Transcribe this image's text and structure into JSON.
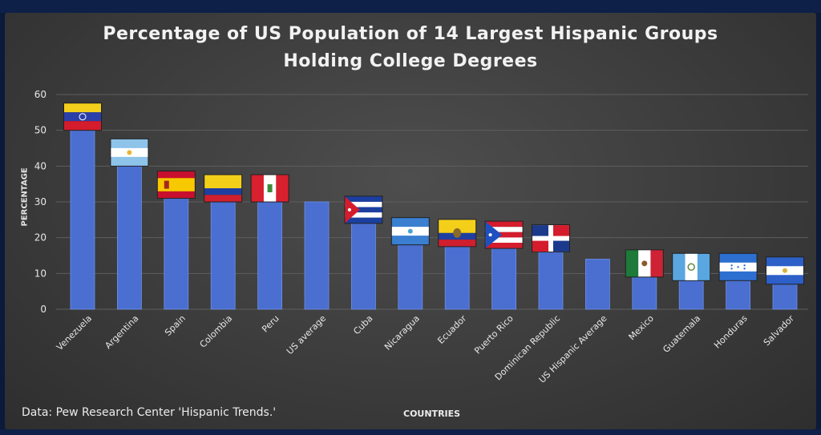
{
  "colors": {
    "bar": "#4a6fd0",
    "bar_edge": "#6f8fe6",
    "grid": "#5e5e5e",
    "text": "#e8e8e8"
  },
  "chart_data": {
    "type": "bar",
    "title_line1": "Percentage of US Population of 14 Largest Hispanic Groups",
    "title_line2": "Holding College Degrees",
    "xlabel": "COUNTRIES",
    "ylabel": "PERCENTAGE",
    "ylim": [
      0,
      60
    ],
    "yticks": [
      0,
      10,
      20,
      30,
      40,
      50,
      60
    ],
    "grid": true,
    "source": "Data: Pew Research Center 'Hispanic Trends.'",
    "categories": [
      "Venezuela",
      "Argentina",
      "Spain",
      "Colombia",
      "Peru",
      "US average",
      "Cuba",
      "Nicaragua",
      "Ecuador",
      "Puerto Rico",
      "Dominican Republic",
      "US Hispanic Average",
      "Mexico",
      "Guatemala",
      "Honduras",
      "Salvador"
    ],
    "values": [
      51,
      41,
      32,
      31,
      31,
      30,
      25,
      19,
      18.5,
      18,
      17,
      14,
      10,
      9,
      9,
      8
    ],
    "flags": [
      "venezuela-flag",
      "argentina-flag",
      "spain-flag",
      "colombia-flag",
      "peru-flag",
      "",
      "cuba-flag",
      "nicaragua-flag",
      "ecuador-flag",
      "puerto-rico-flag",
      "dominican-republic-flag",
      "",
      "mexico-flag",
      "guatemala-flag",
      "honduras-flag",
      "el-salvador-flag"
    ]
  }
}
